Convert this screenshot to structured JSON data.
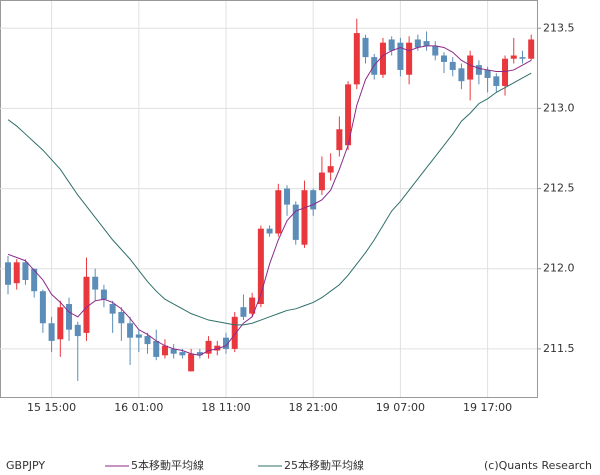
{
  "chart_data": {
    "type": "candlestick",
    "symbol": "GBPJPY",
    "copyright": "(c)Quants Research",
    "categories": [
      null,
      null,
      null,
      null,
      null,
      "15 15:00",
      null,
      null,
      null,
      null,
      null,
      null,
      null,
      null,
      null,
      "16 01:00",
      null,
      null,
      null,
      null,
      null,
      null,
      null,
      null,
      null,
      "18 11:00",
      null,
      null,
      null,
      null,
      null,
      null,
      null,
      null,
      null,
      "18 21:00",
      null,
      null,
      null,
      null,
      null,
      null,
      null,
      null,
      null,
      "19 07:00",
      null,
      null,
      null,
      null,
      null,
      null,
      null,
      null,
      null,
      "19 17:00",
      null,
      null,
      null,
      null,
      null
    ],
    "open": [
      212.04,
      211.91,
      212.04,
      212.0,
      211.86,
      211.66,
      211.56,
      211.78,
      211.65,
      211.6,
      211.95,
      211.87,
      211.78,
      211.73,
      211.66,
      211.59,
      211.58,
      211.55,
      211.46,
      211.5,
      211.48,
      211.36,
      211.48,
      211.47,
      211.49,
      211.57,
      211.5,
      211.76,
      211.72,
      211.78,
      212.25,
      212.22,
      212.5,
      212.4,
      212.15,
      212.49,
      212.49,
      212.6,
      212.74,
      212.77,
      213.15,
      213.44,
      213.32,
      213.21,
      213.43,
      213.41,
      213.21,
      213.43,
      213.42,
      213.39,
      213.33,
      213.29,
      213.25,
      213.18,
      213.27,
      213.24,
      213.2,
      213.14,
      213.31,
      213.32,
      213.31
    ],
    "high": [
      212.08,
      212.06,
      212.06,
      212.0,
      211.87,
      211.7,
      211.8,
      211.82,
      211.67,
      212.07,
      212.0,
      211.9,
      211.8,
      211.76,
      211.7,
      211.62,
      211.6,
      211.62,
      211.56,
      211.53,
      211.5,
      211.5,
      211.5,
      211.58,
      211.55,
      211.6,
      211.73,
      211.84,
      211.85,
      212.27,
      212.27,
      212.53,
      212.52,
      212.42,
      212.55,
      212.5,
      212.7,
      212.72,
      212.95,
      213.17,
      213.56,
      213.46,
      213.34,
      213.44,
      213.45,
      213.44,
      213.45,
      213.46,
      213.48,
      213.42,
      213.35,
      213.32,
      213.28,
      213.36,
      213.3,
      213.26,
      213.22,
      213.33,
      213.44,
      213.36,
      213.46
    ],
    "low": [
      211.84,
      211.87,
      211.9,
      211.82,
      211.6,
      211.48,
      211.45,
      211.55,
      211.3,
      211.55,
      211.8,
      211.76,
      211.6,
      211.55,
      211.4,
      211.48,
      211.47,
      211.43,
      211.44,
      211.44,
      211.44,
      211.36,
      211.44,
      211.44,
      211.46,
      211.47,
      211.48,
      211.68,
      211.7,
      211.76,
      212.2,
      212.2,
      212.33,
      212.15,
      212.13,
      212.33,
      212.46,
      212.55,
      212.7,
      212.74,
      213.12,
      213.28,
      213.18,
      213.19,
      213.33,
      213.2,
      213.15,
      213.36,
      213.36,
      213.3,
      213.22,
      213.2,
      213.12,
      213.05,
      213.15,
      213.1,
      213.1,
      213.08,
      213.28,
      213.28,
      213.3
    ],
    "close": [
      211.9,
      212.04,
      211.93,
      211.86,
      211.66,
      211.55,
      211.76,
      211.62,
      211.58,
      211.95,
      211.87,
      211.81,
      211.72,
      211.66,
      211.57,
      211.57,
      211.53,
      211.45,
      211.52,
      211.47,
      211.46,
      211.47,
      211.46,
      211.55,
      211.52,
      211.5,
      211.7,
      211.7,
      211.82,
      212.25,
      212.22,
      212.49,
      212.4,
      212.18,
      212.49,
      212.37,
      212.6,
      212.64,
      212.87,
      213.15,
      213.47,
      213.32,
      213.21,
      213.41,
      213.36,
      213.24,
      213.41,
      213.38,
      213.39,
      213.33,
      213.29,
      213.24,
      213.17,
      213.33,
      213.21,
      213.19,
      213.14,
      213.31,
      213.33,
      213.31,
      213.43
    ],
    "up_color": "#e8383d",
    "down_color": "#5b8db8",
    "series": [
      {
        "name": "5本移動平均線",
        "color": "#8b2a8b",
        "values": [
          212.09,
          212.07,
          212.05,
          211.99,
          211.93,
          211.84,
          211.79,
          211.73,
          211.7,
          211.76,
          211.8,
          211.81,
          211.79,
          211.75,
          211.69,
          211.62,
          211.59,
          211.55,
          211.52,
          211.5,
          211.49,
          211.47,
          211.46,
          211.49,
          211.5,
          211.52,
          211.59,
          211.66,
          211.7,
          211.84,
          212.03,
          212.18,
          212.3,
          212.36,
          212.38,
          212.4,
          212.43,
          212.49,
          212.62,
          212.77,
          213.02,
          213.18,
          213.27,
          213.33,
          213.36,
          213.38,
          213.36,
          213.38,
          213.39,
          213.39,
          213.38,
          213.35,
          213.3,
          213.27,
          213.25,
          213.24,
          213.23,
          213.23,
          213.24,
          213.27,
          213.3
        ]
      },
      {
        "name": "25本移動平均線",
        "color": "#2f6f6a",
        "values": [
          212.93,
          212.89,
          212.84,
          212.79,
          212.74,
          212.68,
          212.62,
          212.54,
          212.46,
          212.39,
          212.32,
          212.25,
          212.18,
          212.12,
          212.06,
          211.99,
          211.92,
          211.86,
          211.81,
          211.78,
          211.75,
          211.72,
          211.7,
          211.68,
          211.67,
          211.66,
          211.65,
          211.65,
          211.66,
          211.68,
          211.7,
          211.72,
          211.74,
          211.75,
          211.77,
          211.79,
          211.82,
          211.86,
          211.9,
          211.96,
          212.03,
          212.1,
          212.18,
          212.27,
          212.36,
          212.42,
          212.49,
          212.56,
          212.63,
          212.7,
          212.77,
          212.84,
          212.92,
          212.97,
          213.03,
          213.06,
          213.1,
          213.13,
          213.16,
          213.19,
          213.22
        ]
      }
    ],
    "ylim": [
      211.2,
      213.67
    ],
    "yticks": [
      211.5,
      {
        "value": 212.0,
        "label": "212.0"
      },
      212.5,
      {
        "value": 213.0,
        "label": "213.0"
      },
      213.5
    ],
    "grid": true
  }
}
